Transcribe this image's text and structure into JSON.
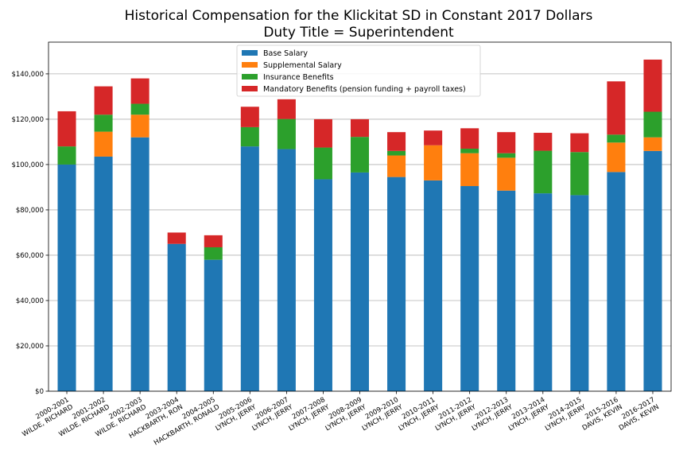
{
  "chart_data": {
    "type": "bar",
    "stacked": true,
    "title": [
      "Historical Compensation for the Klickitat SD in Constant 2017 Dollars",
      "Duty Title = Superintendent"
    ],
    "xlabel": "",
    "ylabel": "",
    "ylim": [
      0,
      154000
    ],
    "yticks": [
      0,
      20000,
      40000,
      60000,
      80000,
      100000,
      120000,
      140000
    ],
    "ytick_labels": [
      "$0",
      "$20,000",
      "$40,000",
      "$60,000",
      "$80,000",
      "$100,000",
      "$120,000",
      "$140,000"
    ],
    "grid": "horizontal",
    "legend_position": "top-center",
    "categories": [
      [
        "2000-2001",
        "WILDE, RICHARD"
      ],
      [
        "2001-2002",
        "WILDE, RICHARD"
      ],
      [
        "2002-2003",
        "WILDE, RICHARD"
      ],
      [
        "2003-2004",
        "HACKBARTH, RON"
      ],
      [
        "2004-2005",
        "HACKBARTH, RONALD"
      ],
      [
        "2005-2006",
        "LYNCH, JERRY"
      ],
      [
        "2006-2007",
        "LYNCH, JERRY"
      ],
      [
        "2007-2008",
        "LYNCH, JERRY"
      ],
      [
        "2008-2009",
        "LYNCH, JERRY"
      ],
      [
        "2009-2010",
        "LYNCH, JERRY"
      ],
      [
        "2010-2011",
        "LYNCH, JERRY"
      ],
      [
        "2011-2012",
        "LYNCH, JERRY"
      ],
      [
        "2012-2013",
        "LYNCH, JERRY"
      ],
      [
        "2013-2014",
        "LYNCH, JERRY"
      ],
      [
        "2014-2015",
        "LYNCH, JERRY"
      ],
      [
        "2015-2016",
        "DAVIS, KEVIN"
      ],
      [
        "2016-2017",
        "DAVIS, KEVIN"
      ]
    ],
    "series": [
      {
        "name": "Base Salary",
        "color": "#1f77b4",
        "values": [
          100000,
          103500,
          112000,
          65000,
          58000,
          108000,
          106800,
          93500,
          96500,
          94500,
          93000,
          90500,
          88500,
          87300,
          86500,
          96700,
          106000
        ]
      },
      {
        "name": "Supplemental Salary",
        "color": "#ff7f0e",
        "values": [
          0,
          11000,
          10000,
          0,
          0,
          0,
          0,
          0,
          0,
          9500,
          15500,
          14500,
          14500,
          0,
          0,
          13000,
          6000
        ]
      },
      {
        "name": "Insurance Benefits",
        "color": "#2ca02c",
        "values": [
          8000,
          7500,
          4800,
          0,
          5500,
          8500,
          13300,
          14000,
          15700,
          2000,
          0,
          2000,
          2000,
          18800,
          19000,
          3500,
          11300
        ]
      },
      {
        "name": "Mandatory Benefits (pension funding + payroll taxes)",
        "color": "#d62728",
        "values": [
          15500,
          12500,
          11200,
          5000,
          5300,
          9000,
          8700,
          12500,
          7800,
          8300,
          6500,
          9000,
          9300,
          7900,
          8300,
          23500,
          23000
        ]
      }
    ]
  }
}
